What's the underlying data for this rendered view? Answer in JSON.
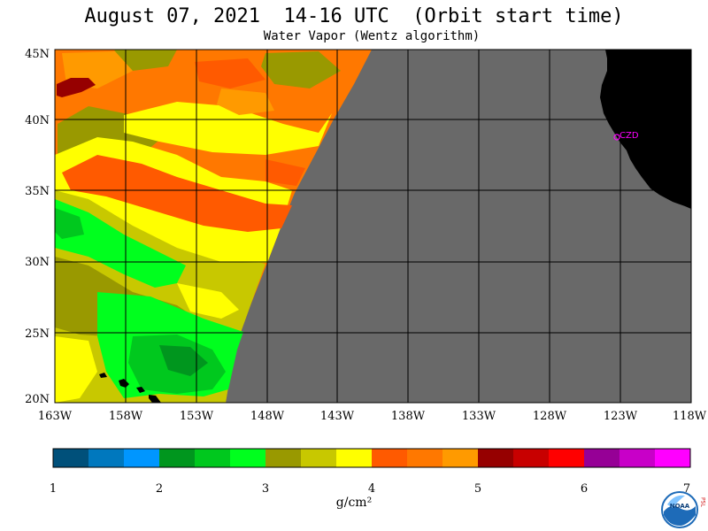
{
  "title": "August 07, 2021  14-16 UTC  (Orbit start time)",
  "subtitle": "Water Vapor (Wentz algorithm)",
  "lat_labels": [
    "45N",
    "40N",
    "35N",
    "30N",
    "25N",
    "20N"
  ],
  "lon_labels": [
    "163W",
    "158W",
    "153W",
    "148W",
    "143W",
    "138W",
    "133W",
    "128W",
    "123W",
    "118W"
  ],
  "station_label": "CZD",
  "colorbar": {
    "units": "g/cm²",
    "tick_labels": [
      "1",
      "2",
      "3",
      "4",
      "5",
      "6",
      "7"
    ],
    "min": 1,
    "max": 7,
    "colors": [
      "#00507a",
      "#0078be",
      "#0096ff",
      "#00961e",
      "#00c81e",
      "#00ff1e",
      "#999900",
      "#c8c800",
      "#ffff00",
      "#ff5a00",
      "#ff7800",
      "#ff9a00",
      "#960000",
      "#c80000",
      "#ff0000",
      "#960096",
      "#c800c8",
      "#ff00ff"
    ]
  },
  "colors": {
    "no_data": "#696969",
    "land": "#000000",
    "grid": "#000000",
    "station": "#ff00ff"
  },
  "logo_text": "NOAA",
  "side_text": "PSL"
}
